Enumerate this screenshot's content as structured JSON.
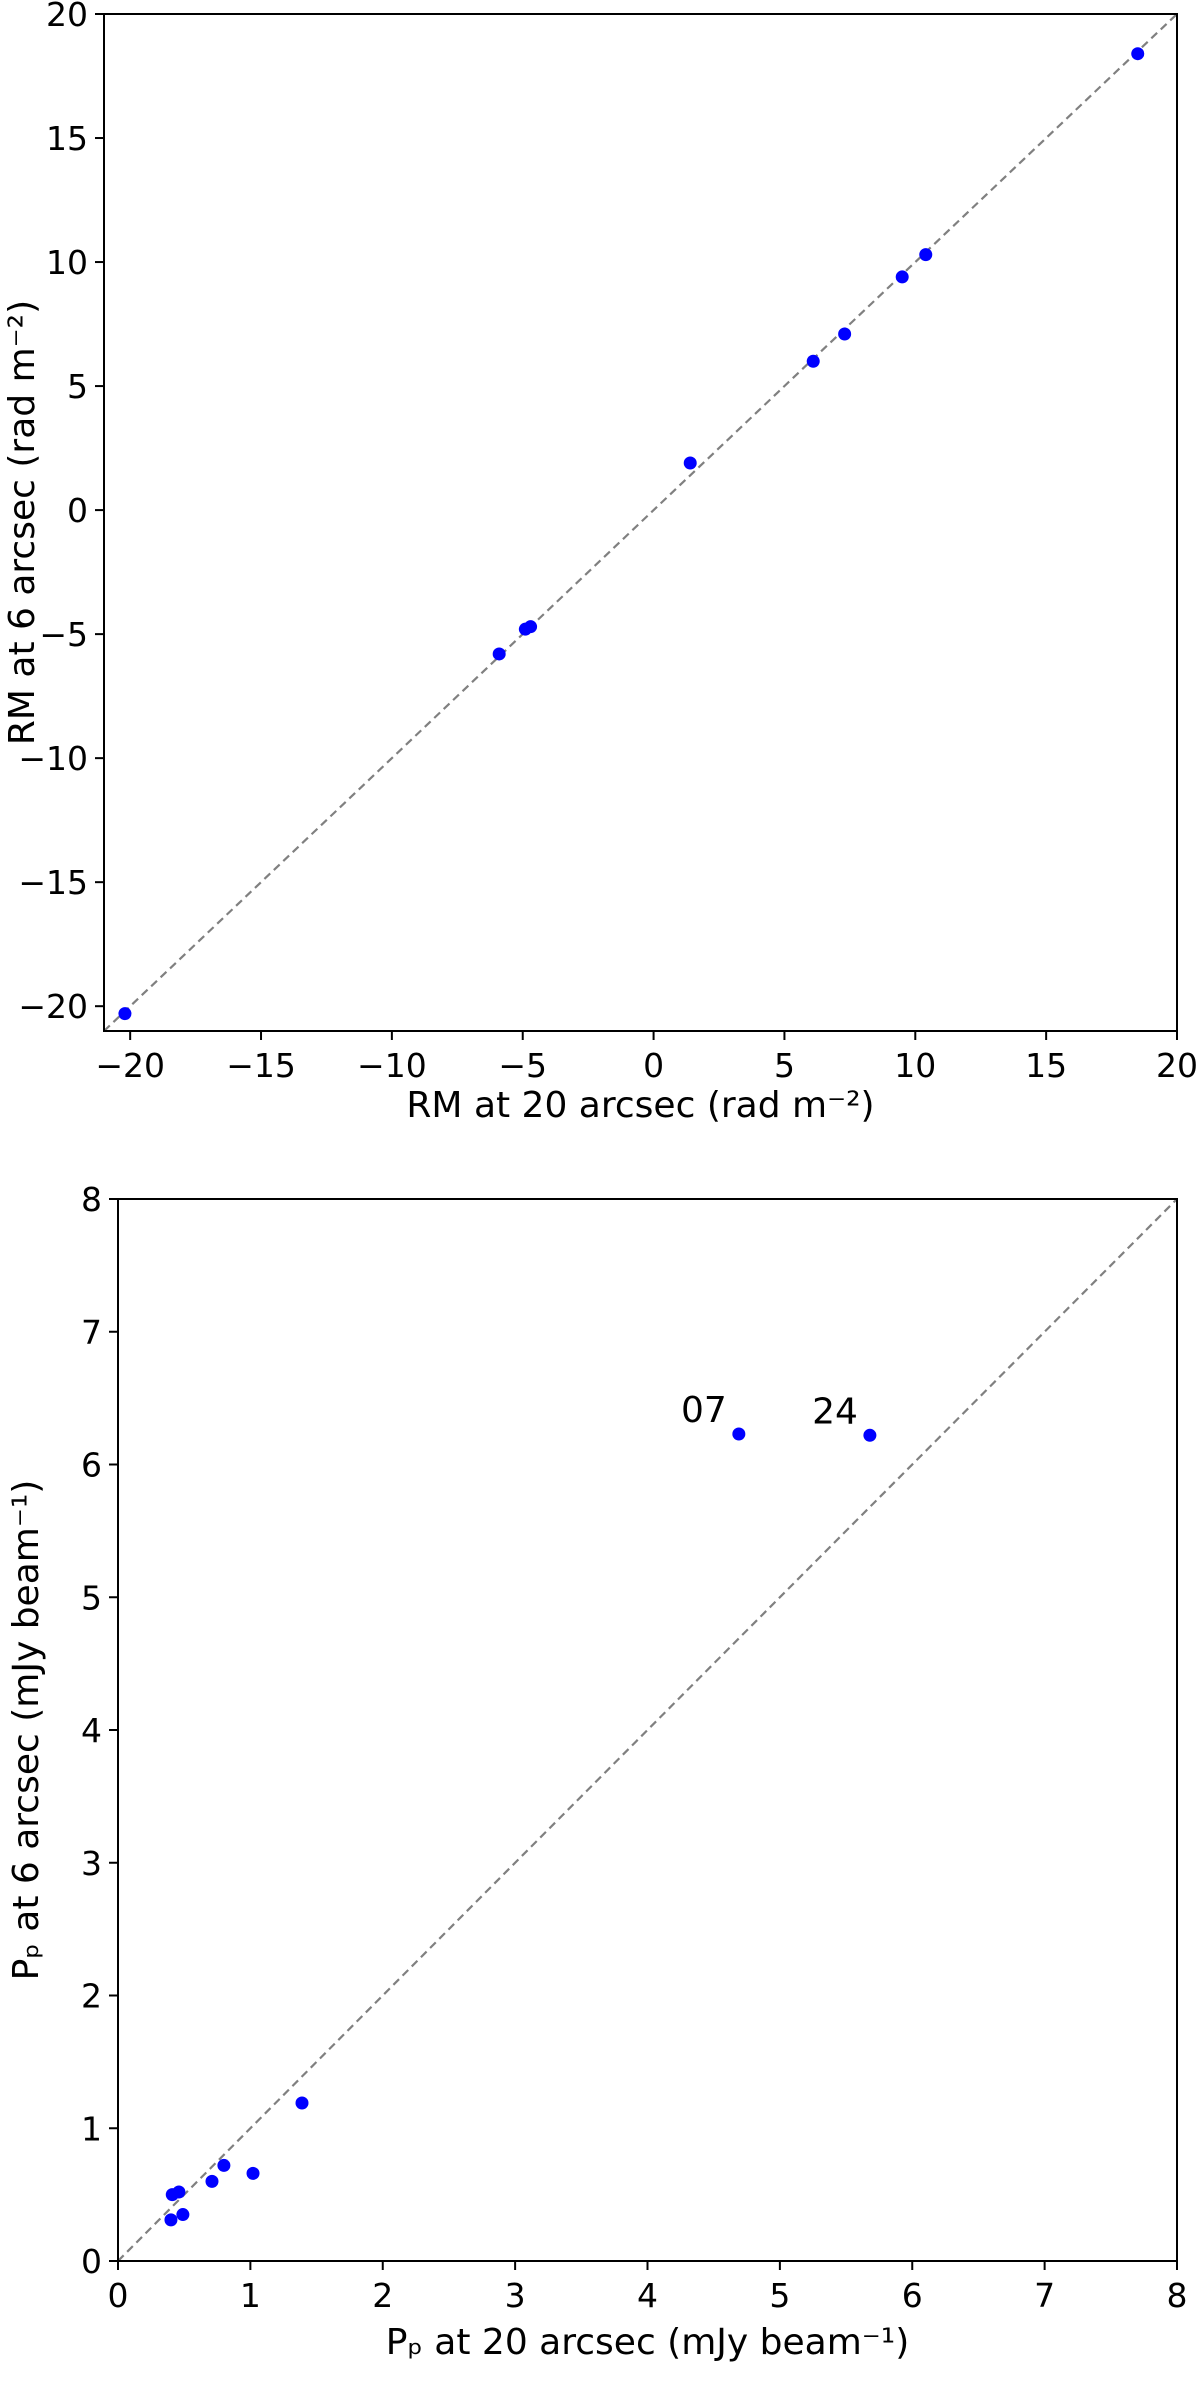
{
  "chart_data": [
    {
      "type": "scatter",
      "xlabel": "RM at 20 arcsec (rad m⁻²)",
      "ylabel": "RM at 6 arcsec (rad m⁻²)",
      "xlim": [
        -21,
        20
      ],
      "ylim": [
        -21,
        20
      ],
      "xticks": [
        -20,
        -15,
        -10,
        -5,
        0,
        5,
        10,
        15,
        20
      ],
      "yticks": [
        -20,
        -15,
        -10,
        -5,
        0,
        5,
        10,
        15,
        20
      ],
      "xticklabels": [
        "−20",
        "−15",
        "−10",
        "−5",
        "0",
        "5",
        "10",
        "15",
        "20"
      ],
      "yticklabels": [
        "−20",
        "−15",
        "−10",
        "−5",
        "0",
        "5",
        "10",
        "15",
        "20"
      ],
      "reference_line": "y = x (gray dashed)",
      "marker_color": "#0000ff",
      "line_color": "#808080",
      "points": [
        {
          "x": -20.2,
          "y": -20.3
        },
        {
          "x": -5.9,
          "y": -5.8
        },
        {
          "x": -4.9,
          "y": -4.8
        },
        {
          "x": -4.7,
          "y": -4.7
        },
        {
          "x": 1.4,
          "y": 1.9
        },
        {
          "x": 6.1,
          "y": 6.0
        },
        {
          "x": 7.3,
          "y": 7.1
        },
        {
          "x": 9.5,
          "y": 9.4
        },
        {
          "x": 10.4,
          "y": 10.3
        },
        {
          "x": 18.5,
          "y": 18.4
        }
      ]
    },
    {
      "type": "scatter",
      "xlabel": "Pₚ at 20 arcsec (mJy beam⁻¹)",
      "ylabel": "Pₚ at 6 arcsec (mJy beam⁻¹)",
      "xlim": [
        0,
        8
      ],
      "ylim": [
        0,
        8
      ],
      "xticks": [
        0,
        1,
        2,
        3,
        4,
        5,
        6,
        7,
        8
      ],
      "yticks": [
        0,
        1,
        2,
        3,
        4,
        5,
        6,
        7,
        8
      ],
      "xticklabels": [
        "0",
        "1",
        "2",
        "3",
        "4",
        "5",
        "6",
        "7",
        "8"
      ],
      "yticklabels": [
        "0",
        "1",
        "2",
        "3",
        "4",
        "5",
        "6",
        "7",
        "8"
      ],
      "reference_line": "y = x (gray dashed)",
      "marker_color": "#0000ff",
      "line_color": "#808080",
      "points": [
        {
          "x": 0.4,
          "y": 0.31
        },
        {
          "x": 0.49,
          "y": 0.35
        },
        {
          "x": 0.41,
          "y": 0.5
        },
        {
          "x": 0.46,
          "y": 0.52
        },
        {
          "x": 0.71,
          "y": 0.6
        },
        {
          "x": 0.8,
          "y": 0.72
        },
        {
          "x": 1.02,
          "y": 0.66
        },
        {
          "x": 1.39,
          "y": 1.19
        },
        {
          "x": 4.69,
          "y": 6.23,
          "label": "07"
        },
        {
          "x": 5.68,
          "y": 6.22,
          "label": "24"
        }
      ]
    }
  ]
}
